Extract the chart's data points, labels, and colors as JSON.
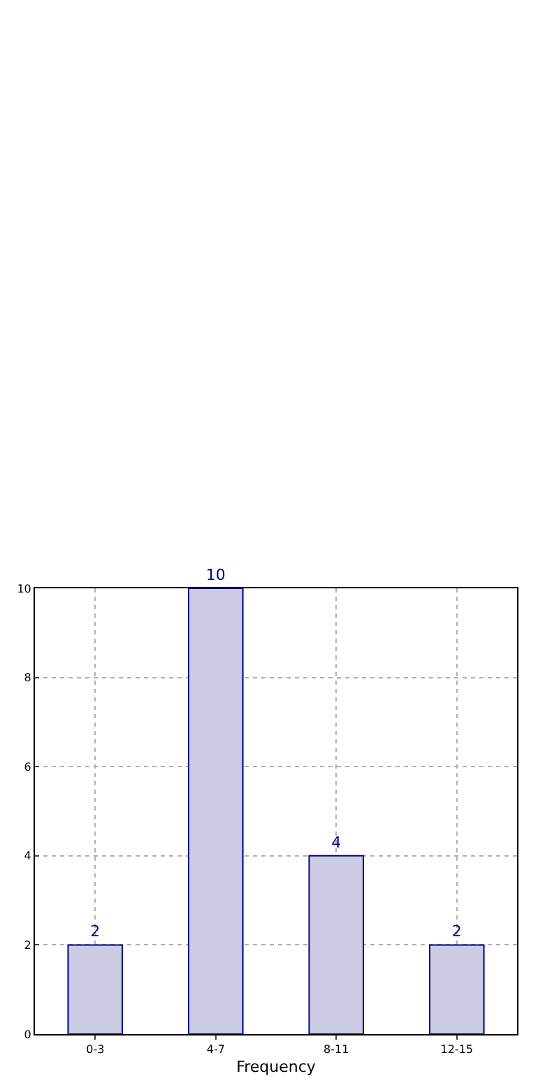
{
  "chart_data": {
    "type": "bar",
    "xlabel": "Frequency",
    "categories": [
      "0-3",
      "4-7",
      "8-11",
      "12-15"
    ],
    "values": [
      2,
      10,
      4,
      2
    ],
    "color": "#cccce4",
    "ylim": [
      0,
      10
    ],
    "yticks": [
      0,
      2,
      4,
      6,
      8,
      10
    ],
    "grid": true,
    "data_labels": true
  }
}
